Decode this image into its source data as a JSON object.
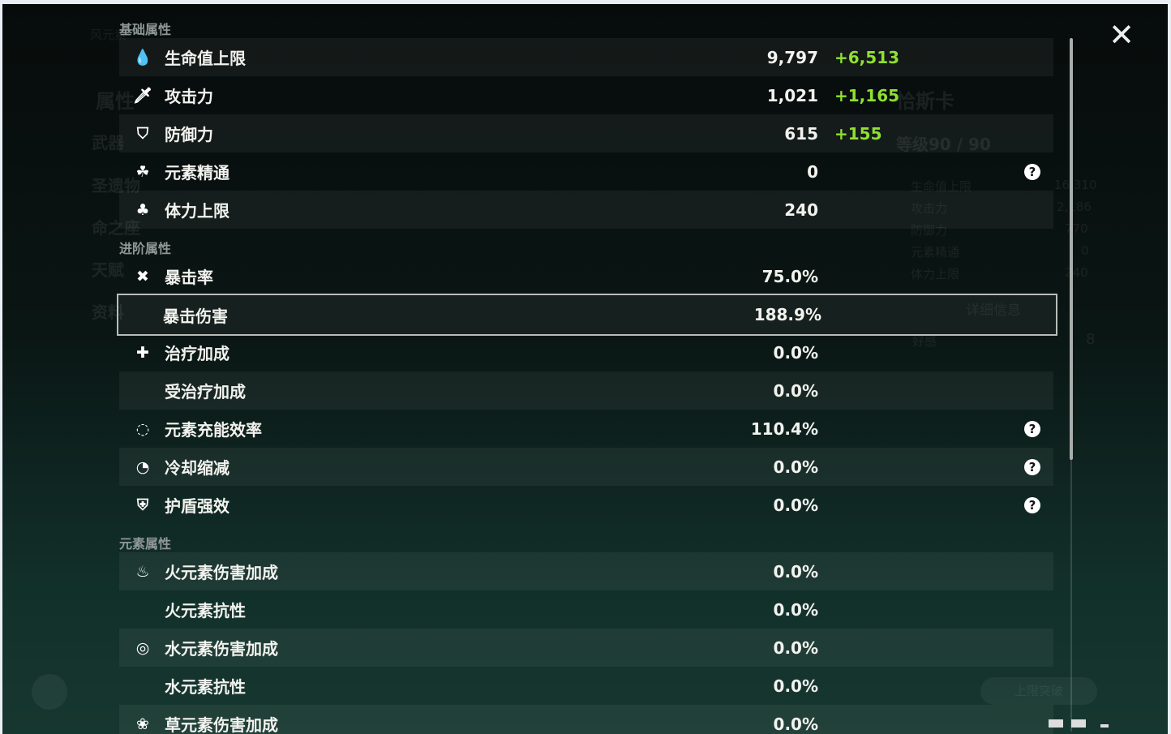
{
  "background": {
    "char_name": "恰斯卡",
    "level": "等级90 / 90",
    "element_label": "风元素",
    "menu": [
      "属性",
      "武器",
      "圣遗物",
      "命之座",
      "天赋",
      "资料"
    ],
    "stats": [
      {
        "label": "生命值上限",
        "value": "16,310"
      },
      {
        "label": "攻击力",
        "value": "2,186"
      },
      {
        "label": "防御力",
        "value": "770"
      },
      {
        "label": "元素精通",
        "value": "0"
      },
      {
        "label": "体力上限",
        "value": "240"
      }
    ],
    "details_button": "详细信息",
    "friendship_label": "好感",
    "friendship_value": "8",
    "ascend_button": "上限突破"
  },
  "sections": {
    "basic": "基础属性",
    "advanced": "进阶属性",
    "elemental": "元素属性"
  },
  "basic": [
    {
      "icon": "hp-drop-icon",
      "glyph": "💧",
      "label": "生命值上限",
      "value": "9,797",
      "bonus": "+6,513"
    },
    {
      "icon": "sword-icon",
      "glyph": "🗡",
      "label": "攻击力",
      "value": "1,021",
      "bonus": "+1,165"
    },
    {
      "icon": "shield-icon",
      "glyph": "⛉",
      "label": "防御力",
      "value": "615",
      "bonus": "+155"
    },
    {
      "icon": "elemental-mastery-icon",
      "glyph": "☘",
      "label": "元素精通",
      "value": "0",
      "help": true
    },
    {
      "icon": "stamina-icon",
      "glyph": "♣",
      "label": "体力上限",
      "value": "240"
    }
  ],
  "advanced": [
    {
      "icon": "crit-rate-icon",
      "glyph": "✖",
      "label": "暴击率",
      "value": "75.0%"
    },
    {
      "icon": "crit-dmg-icon",
      "glyph": "",
      "label": "暴击伤害",
      "value": "188.9%",
      "selected": true
    },
    {
      "icon": "healing-icon",
      "glyph": "✚",
      "label": "治疗加成",
      "value": "0.0%"
    },
    {
      "icon": "",
      "glyph": "",
      "label": "受治疗加成",
      "value": "0.0%"
    },
    {
      "icon": "energy-recharge-icon",
      "glyph": "◌",
      "label": "元素充能效率",
      "value": "110.4%",
      "help": true
    },
    {
      "icon": "cooldown-icon",
      "glyph": "◔",
      "label": "冷却缩减",
      "value": "0.0%",
      "help": true
    },
    {
      "icon": "shield-strength-icon",
      "glyph": "⛨",
      "label": "护盾强效",
      "value": "0.0%",
      "help": true
    }
  ],
  "elemental": [
    {
      "icon": "pyro-icon",
      "glyph": "♨",
      "label": "火元素伤害加成",
      "value": "0.0%"
    },
    {
      "icon": "",
      "glyph": "",
      "label": "火元素抗性",
      "value": "0.0%"
    },
    {
      "icon": "hydro-icon",
      "glyph": "◎",
      "label": "水元素伤害加成",
      "value": "0.0%"
    },
    {
      "icon": "",
      "glyph": "",
      "label": "水元素抗性",
      "value": "0.0%"
    },
    {
      "icon": "dendro-icon",
      "glyph": "❀",
      "label": "草元素伤害加成",
      "value": "0.0%"
    }
  ],
  "help_glyph": "?",
  "close_glyph": "✕"
}
